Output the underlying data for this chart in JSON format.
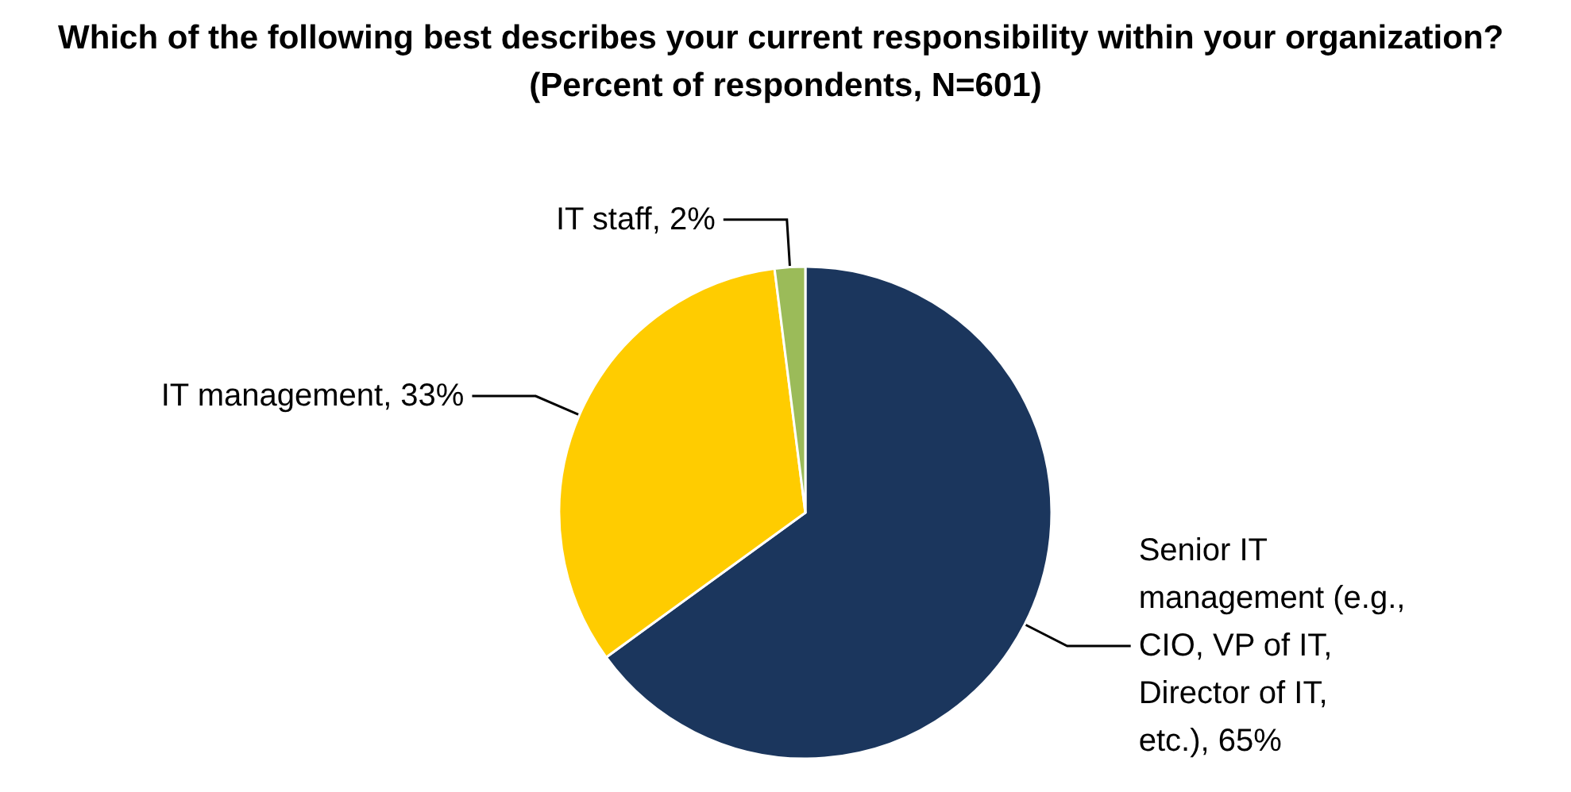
{
  "chart_data": {
    "type": "pie",
    "title": "Which of the following best describes your current responsibility within your organization? (Percent of respondents, N=601)",
    "categories": [
      "Senior IT management (e.g., CIO, VP of IT, Director of IT, etc.)",
      "IT management",
      "IT staff"
    ],
    "values": [
      65,
      33,
      2
    ],
    "value_labels": [
      "65%",
      "33%",
      "2%"
    ],
    "colors": [
      "#1b365d",
      "#ffcc00",
      "#9bbb59"
    ],
    "legend": false
  }
}
